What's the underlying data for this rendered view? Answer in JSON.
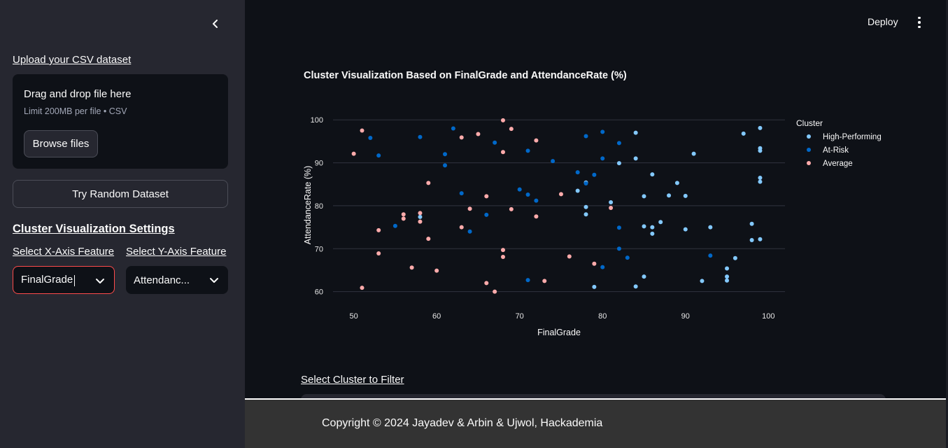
{
  "sidebar": {
    "upload_label": "Upload your CSV dataset",
    "uploader": {
      "drag_text": "Drag and drop file here",
      "limit_text": "Limit 200MB per file • CSV",
      "browse_label": "Browse files"
    },
    "random_button": "Try Random Dataset",
    "settings_title": "Cluster Visualization Settings",
    "x_label": "Select X-Axis Feature",
    "y_label": "Select Y-Axis Feature",
    "x_value": "FinalGrade",
    "y_value": "Attendanc..."
  },
  "header": {
    "deploy_label": "Deploy"
  },
  "main": {
    "chart_title": "Cluster Visualization Based on FinalGrade and AttendanceRate (%)",
    "filter_label": "Select Cluster to Filter"
  },
  "footer": {
    "text": "Copyright © 2024 Jayadev & Arbin & Ujwol, Hackademia"
  },
  "colors": {
    "high": "#83c9ff",
    "atrisk": "#0068c9",
    "average": "#ffabab",
    "accent": "#ff4b4b"
  },
  "chart_data": {
    "type": "scatter",
    "xlabel": "FinalGrade",
    "ylabel": "AttendanceRate (%)",
    "xlim": [
      47.5,
      102
    ],
    "ylim": [
      57.5,
      101.5
    ],
    "xticks": [
      50,
      60,
      70,
      80,
      90,
      100
    ],
    "yticks": [
      60,
      70,
      80,
      90,
      100
    ],
    "grid": true,
    "legend_title": "Cluster",
    "legend_position": "top-right",
    "series": [
      {
        "name": "High-Performing",
        "color": "#83c9ff",
        "points": [
          [
            78,
            85.4
          ],
          [
            78,
            79.7
          ],
          [
            78,
            78
          ],
          [
            81,
            80.8
          ],
          [
            82,
            89.9
          ],
          [
            84,
            97
          ],
          [
            84,
            91
          ],
          [
            85,
            82.2
          ],
          [
            85,
            75.2
          ],
          [
            86,
            75
          ],
          [
            86,
            73.5
          ],
          [
            87,
            76.2
          ],
          [
            86,
            87.3
          ],
          [
            88,
            82.4
          ],
          [
            89,
            85.3
          ],
          [
            90,
            82.3
          ],
          [
            90,
            74.5
          ],
          [
            91,
            92.1
          ],
          [
            93,
            75
          ],
          [
            97,
            96.8
          ],
          [
            98,
            75.8
          ],
          [
            98,
            72
          ],
          [
            99,
            98.1
          ],
          [
            99,
            93.4
          ],
          [
            99,
            92.8
          ],
          [
            99,
            86.5
          ],
          [
            99,
            85.6
          ],
          [
            99,
            72.2
          ],
          [
            96,
            67.8
          ],
          [
            95,
            65.4
          ],
          [
            95,
            63.5
          ],
          [
            95,
            62.6
          ],
          [
            92,
            62.5
          ],
          [
            85,
            63.5
          ],
          [
            84,
            61.2
          ],
          [
            79,
            61.1
          ],
          [
            77,
            83.5
          ],
          [
            58,
            77.4
          ]
        ]
      },
      {
        "name": "At-Risk",
        "color": "#0068c9",
        "points": [
          [
            52,
            95.8
          ],
          [
            53,
            91.7
          ],
          [
            55,
            75.3
          ],
          [
            58,
            96
          ],
          [
            61,
            92
          ],
          [
            61,
            89.4
          ],
          [
            62,
            98
          ],
          [
            63,
            82.9
          ],
          [
            64,
            74
          ],
          [
            66,
            77.9
          ],
          [
            67,
            94.7
          ],
          [
            70,
            83.8
          ],
          [
            71,
            92.8
          ],
          [
            71,
            82.6
          ],
          [
            72,
            81.2
          ],
          [
            74,
            90.4
          ],
          [
            77,
            87.8
          ],
          [
            78,
            96.2
          ],
          [
            78,
            85.2
          ],
          [
            79,
            87.2
          ],
          [
            80,
            97.2
          ],
          [
            80,
            91
          ],
          [
            82,
            94.6
          ],
          [
            82,
            74.9
          ],
          [
            82,
            70
          ],
          [
            83,
            67.9
          ],
          [
            93,
            68.4
          ],
          [
            80,
            65.7
          ],
          [
            71,
            62.7
          ]
        ]
      },
      {
        "name": "Average",
        "color": "#ffabab",
        "points": [
          [
            50,
            92.1
          ],
          [
            51,
            97.5
          ],
          [
            53,
            74.3
          ],
          [
            53,
            68.9
          ],
          [
            56,
            78
          ],
          [
            56,
            77
          ],
          [
            58,
            78.3
          ],
          [
            58,
            76.3
          ],
          [
            59,
            85.3
          ],
          [
            59,
            72.3
          ],
          [
            57,
            65.6
          ],
          [
            51,
            60.9
          ],
          [
            60,
            64.9
          ],
          [
            63,
            95.9
          ],
          [
            63,
            75
          ],
          [
            64,
            79.3
          ],
          [
            65,
            96.7
          ],
          [
            66,
            82.2
          ],
          [
            66,
            62
          ],
          [
            67,
            60
          ],
          [
            68,
            99.9
          ],
          [
            68,
            92.5
          ],
          [
            68,
            69.7
          ],
          [
            68,
            68.1
          ],
          [
            69,
            97.9
          ],
          [
            69,
            79.2
          ],
          [
            72,
            95.2
          ],
          [
            72,
            77.5
          ],
          [
            73,
            62.5
          ],
          [
            75,
            82.7
          ],
          [
            76,
            68.2
          ],
          [
            79,
            66.5
          ],
          [
            81,
            79.5
          ]
        ]
      }
    ]
  }
}
